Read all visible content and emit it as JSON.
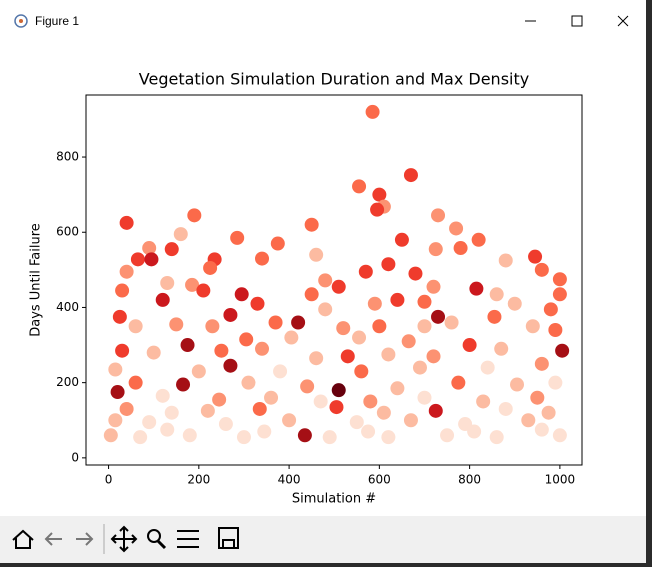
{
  "window": {
    "title": "Figure 1"
  },
  "chart_data": {
    "type": "scatter",
    "title": "Vegetation Simulation Duration and Max Density",
    "x_label": "Simulation #",
    "y_label": "Days Until Failure",
    "xlim": [
      -50,
      1049
    ],
    "ylim": [
      -19,
      965
    ],
    "xticks": [
      0,
      200,
      400,
      600,
      800,
      1000
    ],
    "yticks": [
      0,
      200,
      400,
      600,
      800
    ],
    "x": [
      585,
      670,
      555,
      600,
      610,
      595,
      190,
      730,
      40,
      450,
      160,
      770,
      285,
      650,
      820,
      375,
      90,
      140,
      725,
      780,
      460,
      235,
      340,
      65,
      95,
      880,
      945,
      620,
      570,
      40,
      225,
      680,
      1000,
      480,
      960,
      130,
      185,
      720,
      815,
      30,
      210,
      295,
      450,
      510,
      590,
      860,
      1000,
      120,
      330,
      640,
      700,
      900,
      980,
      25,
      270,
      480,
      730,
      855,
      60,
      150,
      230,
      370,
      420,
      520,
      600,
      700,
      760,
      940,
      990,
      175,
      305,
      405,
      555,
      665,
      800,
      1005,
      30,
      100,
      250,
      340,
      460,
      530,
      620,
      720,
      870,
      270,
      200,
      15,
      380,
      560,
      690,
      840,
      960,
      60,
      165,
      310,
      440,
      510,
      640,
      775,
      905,
      990,
      20,
      120,
      245,
      360,
      470,
      580,
      700,
      830,
      950,
      40,
      140,
      220,
      335,
      505,
      610,
      725,
      880,
      975,
      15,
      90,
      260,
      400,
      550,
      670,
      790,
      930,
      5,
      70,
      180,
      300,
      435,
      490,
      620,
      750,
      860,
      1000,
      130,
      345,
      575,
      810,
      960
    ],
    "values": [
      920,
      752,
      722,
      700,
      668,
      660,
      645,
      645,
      625,
      620,
      595,
      610,
      585,
      580,
      580,
      570,
      558,
      555,
      555,
      558,
      540,
      528,
      530,
      528,
      528,
      525,
      535,
      515,
      495,
      495,
      505,
      490,
      475,
      472,
      500,
      465,
      460,
      455,
      450,
      445,
      445,
      435,
      435,
      455,
      410,
      435,
      435,
      420,
      410,
      420,
      415,
      410,
      395,
      375,
      380,
      395,
      375,
      375,
      350,
      355,
      350,
      360,
      360,
      345,
      350,
      350,
      360,
      350,
      340,
      300,
      315,
      320,
      320,
      310,
      300,
      285,
      285,
      280,
      285,
      290,
      265,
      270,
      275,
      270,
      290,
      245,
      230,
      235,
      230,
      230,
      240,
      240,
      250,
      200,
      195,
      200,
      190,
      180,
      185,
      200,
      195,
      200,
      175,
      165,
      155,
      160,
      150,
      150,
      160,
      150,
      160,
      130,
      120,
      125,
      130,
      135,
      120,
      125,
      130,
      120,
      100,
      95,
      90,
      100,
      95,
      100,
      90,
      100,
      60,
      55,
      60,
      55,
      60,
      55,
      55,
      60,
      55,
      60,
      75,
      70,
      70,
      70,
      75
    ],
    "colors": [
      "#fb6a4a",
      "#ef3b2c",
      "#fb6a4a",
      "#ef3b2c",
      "#fc9272",
      "#ef3b2c",
      "#fb6a4a",
      "#fc9272",
      "#ef3b2c",
      "#fb6a4a",
      "#fcbba1",
      "#fc9272",
      "#fb6a4a",
      "#ef3b2c",
      "#fb6a4a",
      "#fb6a4a",
      "#fc9272",
      "#ef3b2c",
      "#fc9272",
      "#fb6a4a",
      "#fcbba1",
      "#ef3b2c",
      "#fb6a4a",
      "#ef3b2c",
      "#cb181d",
      "#fcbba1",
      "#ef3b2c",
      "#ef3b2c",
      "#ef3b2c",
      "#fc9272",
      "#fb6a4a",
      "#ef3b2c",
      "#fb6a4a",
      "#fc9272",
      "#fb6a4a",
      "#fcbba1",
      "#fc9272",
      "#fc9272",
      "#cb181d",
      "#fb6a4a",
      "#ef3b2c",
      "#cb181d",
      "#fb6a4a",
      "#ef3b2c",
      "#fc9272",
      "#fcbba1",
      "#fb6a4a",
      "#cb181d",
      "#ef3b2c",
      "#ef3b2c",
      "#fb6a4a",
      "#fcbba1",
      "#fb6a4a",
      "#ef3b2c",
      "#cb181d",
      "#fcbba1",
      "#a50f15",
      "#fb6a4a",
      "#fcbba1",
      "#fc9272",
      "#fc9272",
      "#fb6a4a",
      "#a50f15",
      "#fc9272",
      "#fb6a4a",
      "#fcbba1",
      "#fcbba1",
      "#fcbba1",
      "#fb6a4a",
      "#a50f15",
      "#fb6a4a",
      "#fcbba1",
      "#fcbba1",
      "#fc9272",
      "#ef3b2c",
      "#a50f15",
      "#ef3b2c",
      "#fcbba1",
      "#fb6a4a",
      "#fc9272",
      "#fcbba1",
      "#ef3b2c",
      "#fcbba1",
      "#fc9272",
      "#fcbba1",
      "#a50f15",
      "#fcbba1",
      "#fcbba1",
      "#fde0d2",
      "#fb6a4a",
      "#fcbba1",
      "#fde0d2",
      "#fc9272",
      "#fb6a4a",
      "#a50f15",
      "#fcbba1",
      "#fc9272",
      "#67000d",
      "#fcbba1",
      "#fb6a4a",
      "#fcbba1",
      "#fde0d2",
      "#a50f15",
      "#fde0d2",
      "#fc9272",
      "#fcbba1",
      "#fde0d2",
      "#fc9272",
      "#fde0d2",
      "#fcbba1",
      "#fc9272",
      "#fc9272",
      "#fde0d2",
      "#fcbba1",
      "#fb6a4a",
      "#ef3b2c",
      "#fcbba1",
      "#cb181d",
      "#fde0d2",
      "#fcbba1",
      "#fcbba1",
      "#fde0d2",
      "#fde0d2",
      "#fcbba1",
      "#fde0d2",
      "#fcbba1",
      "#fde0d2",
      "#fcbba1",
      "#fcbba1",
      "#fde0d2",
      "#fde0d2",
      "#fde0d2",
      "#a50f15",
      "#fde0d2",
      "#fde0d2",
      "#fde0d2",
      "#fde0d2",
      "#fde0d2",
      "#fde0d2",
      "#fde0d2",
      "#fde0d2",
      "#fde0d2",
      "#fde0d2"
    ]
  }
}
